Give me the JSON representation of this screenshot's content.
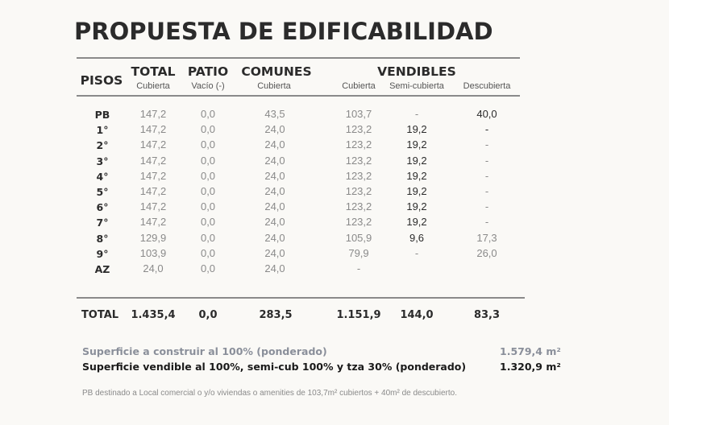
{
  "title": "PROPUESTA DE EDIFICABILIDAD",
  "headers": {
    "pisos": "PISOS",
    "total": "TOTAL",
    "total_sub": "Cubierta",
    "patio": "PATIO",
    "patio_sub": "Vacío (-)",
    "comunes": "COMUNES",
    "comunes_sub": "Cubierta",
    "vendibles": "VENDIBLES",
    "vend_cub": "Cubierta",
    "vend_semi": "Semi-cubierta",
    "vend_desc": "Descubierta"
  },
  "rows": [
    {
      "piso": "PB",
      "total": "147,2",
      "patio": "0,0",
      "comunes": "43,5",
      "cub": "103,7",
      "semi": "-",
      "desc": "40,0"
    },
    {
      "piso": "1°",
      "total": "147,2",
      "patio": "0,0",
      "comunes": "24,0",
      "cub": "123,2",
      "semi": "19,2",
      "desc": "-"
    },
    {
      "piso": "2°",
      "total": "147,2",
      "patio": "0,0",
      "comunes": "24,0",
      "cub": "123,2",
      "semi": "19,2",
      "desc": "-"
    },
    {
      "piso": "3°",
      "total": "147,2",
      "patio": "0,0",
      "comunes": "24,0",
      "cub": "123,2",
      "semi": "19,2",
      "desc": "-"
    },
    {
      "piso": "4°",
      "total": "147,2",
      "patio": "0,0",
      "comunes": "24,0",
      "cub": "123,2",
      "semi": "19,2",
      "desc": "-"
    },
    {
      "piso": "5°",
      "total": "147,2",
      "patio": "0,0",
      "comunes": "24,0",
      "cub": "123,2",
      "semi": "19,2",
      "desc": "-"
    },
    {
      "piso": "6°",
      "total": "147,2",
      "patio": "0,0",
      "comunes": "24,0",
      "cub": "123,2",
      "semi": "19,2",
      "desc": "-"
    },
    {
      "piso": "7°",
      "total": "147,2",
      "patio": "0,0",
      "comunes": "24,0",
      "cub": "123,2",
      "semi": "19,2",
      "desc": "-"
    },
    {
      "piso": "8°",
      "total": "129,9",
      "patio": "0,0",
      "comunes": "24,0",
      "cub": "105,9",
      "semi": "9,6",
      "desc": "17,3"
    },
    {
      "piso": "9°",
      "total": "103,9",
      "patio": "0,0",
      "comunes": "24,0",
      "cub": "79,9",
      "semi": "-",
      "desc": "26,0"
    },
    {
      "piso": "AZ",
      "total": "24,0",
      "patio": "0,0",
      "comunes": "24,0",
      "cub": "-",
      "semi": "",
      "desc": ""
    }
  ],
  "totals": {
    "label": "TOTAL",
    "total": "1.435,4",
    "patio": "0,0",
    "comunes": "283,5",
    "cub": "1.151,9",
    "semi": "144,0",
    "desc": "83,3"
  },
  "summary": {
    "line1_label": "Superficie a construir  al 100% (ponderado)",
    "line1_value": "1.579,4 m²",
    "line2_label": "Superficie vendible  al 100%, semi-cub 100% y tza 30% (ponderado)",
    "line2_value": "1.320,9 m²"
  },
  "note": "PB destinado a Local comercial o y/o viviendas o amenities de 103,7m² cubiertos + 40m² de descubierto.",
  "colors": {
    "background": "#faf9f6",
    "rule": "#8a8a8a",
    "text_dark": "#2b2b2b",
    "text_muted": "#8a8a8a"
  }
}
